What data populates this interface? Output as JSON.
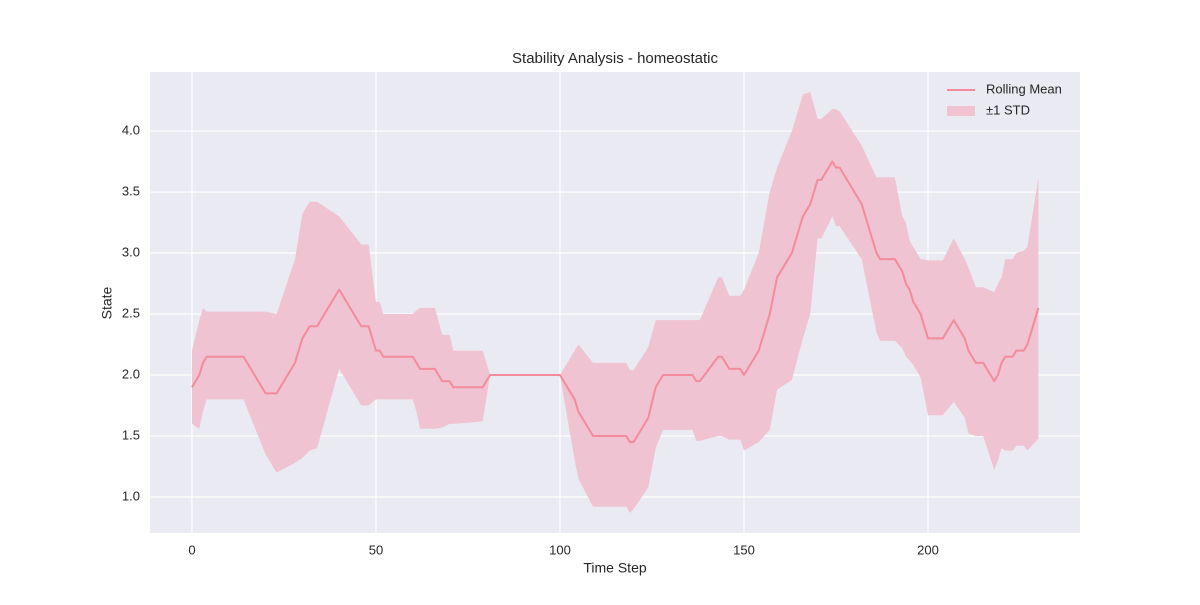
{
  "chart_data": {
    "type": "line",
    "title": "Stability Analysis - homeostatic",
    "x_label": "Time Step",
    "y_label": "State",
    "x": [
      0,
      2,
      3,
      4,
      14,
      20,
      23,
      28,
      30,
      32,
      34,
      40,
      46,
      48,
      50,
      51,
      52,
      60,
      61,
      62,
      66,
      68,
      70,
      71,
      79,
      81,
      100,
      104,
      105,
      109,
      118,
      119,
      120,
      124,
      126,
      128,
      136,
      137,
      138,
      143,
      144,
      146,
      149,
      150,
      154,
      157,
      159,
      163,
      166,
      168,
      170,
      171,
      174,
      175,
      176,
      182,
      186,
      187,
      191,
      193,
      194,
      195,
      196,
      198,
      200,
      204,
      207,
      210,
      211,
      213,
      215,
      218,
      219,
      220,
      221,
      222,
      223,
      224,
      226,
      227,
      230
    ],
    "series": [
      {
        "name": "Rolling Mean",
        "color": "#f48b9c",
        "values": [
          1.9,
          2.0,
          2.1,
          2.15,
          2.15,
          1.85,
          1.85,
          2.1,
          2.3,
          2.4,
          2.4,
          2.7,
          2.4,
          2.4,
          2.2,
          2.2,
          2.15,
          2.15,
          2.1,
          2.05,
          2.05,
          1.95,
          1.95,
          1.9,
          1.9,
          2.0,
          2.0,
          1.8,
          1.7,
          1.5,
          1.5,
          1.45,
          1.45,
          1.65,
          1.9,
          2.0,
          2.0,
          1.95,
          1.95,
          2.15,
          2.15,
          2.05,
          2.05,
          2.0,
          2.2,
          2.5,
          2.8,
          3.0,
          3.3,
          3.4,
          3.6,
          3.6,
          3.75,
          3.7,
          3.7,
          3.4,
          3.0,
          2.95,
          2.95,
          2.85,
          2.75,
          2.7,
          2.6,
          2.5,
          2.3,
          2.3,
          2.45,
          2.3,
          2.2,
          2.1,
          2.1,
          1.95,
          2.0,
          2.1,
          2.15,
          2.15,
          2.15,
          2.2,
          2.2,
          2.25,
          2.55
        ]
      }
    ],
    "band": {
      "name": "±1 STD",
      "color": "#efc3d1",
      "lower": [
        1.6,
        1.56,
        1.7,
        1.8,
        1.8,
        1.35,
        1.2,
        1.28,
        1.32,
        1.38,
        1.4,
        2.05,
        1.75,
        1.75,
        1.8,
        1.8,
        1.8,
        1.8,
        1.7,
        1.56,
        1.56,
        1.57,
        1.6,
        1.6,
        1.62,
        2.0,
        2.0,
        1.3,
        1.15,
        0.92,
        0.92,
        0.87,
        0.9,
        1.08,
        1.4,
        1.55,
        1.55,
        1.46,
        1.46,
        1.5,
        1.5,
        1.47,
        1.47,
        1.38,
        1.45,
        1.55,
        1.88,
        1.96,
        2.3,
        2.5,
        3.12,
        3.12,
        3.3,
        3.22,
        3.22,
        2.95,
        2.35,
        2.28,
        2.28,
        2.22,
        2.15,
        2.12,
        2.08,
        1.98,
        1.67,
        1.67,
        1.78,
        1.65,
        1.52,
        1.5,
        1.5,
        1.22,
        1.3,
        1.4,
        1.38,
        1.38,
        1.38,
        1.42,
        1.42,
        1.38,
        1.48
      ],
      "upper": [
        2.2,
        2.45,
        2.55,
        2.52,
        2.52,
        2.52,
        2.5,
        2.95,
        3.32,
        3.42,
        3.42,
        3.3,
        3.07,
        3.07,
        2.6,
        2.6,
        2.5,
        2.5,
        2.53,
        2.55,
        2.55,
        2.33,
        2.33,
        2.2,
        2.2,
        2.0,
        2.0,
        2.2,
        2.25,
        2.1,
        2.1,
        2.04,
        2.04,
        2.23,
        2.45,
        2.45,
        2.45,
        2.45,
        2.45,
        2.8,
        2.8,
        2.65,
        2.65,
        2.7,
        3.0,
        3.5,
        3.7,
        4.0,
        4.3,
        4.32,
        4.1,
        4.1,
        4.18,
        4.18,
        4.16,
        3.88,
        3.62,
        3.62,
        3.62,
        3.3,
        3.25,
        3.1,
        3.05,
        2.95,
        2.94,
        2.94,
        3.12,
        2.95,
        2.88,
        2.72,
        2.72,
        2.68,
        2.75,
        2.8,
        2.95,
        2.95,
        2.95,
        3.0,
        3.02,
        3.05,
        3.62
      ]
    },
    "xlim": [
      -11.4,
      241.3
    ],
    "ylim": [
      0.705,
      4.484
    ],
    "xticks": [
      0,
      50,
      100,
      150,
      200
    ],
    "yticks": [
      {
        "value": 1,
        "label": "1.0"
      },
      1.5,
      {
        "value": 2,
        "label": "2.0"
      },
      2.5,
      {
        "value": 3,
        "label": "3.0"
      },
      3.5,
      {
        "value": 4,
        "label": "4.0"
      }
    ],
    "grid": true,
    "legend": "upper right"
  }
}
